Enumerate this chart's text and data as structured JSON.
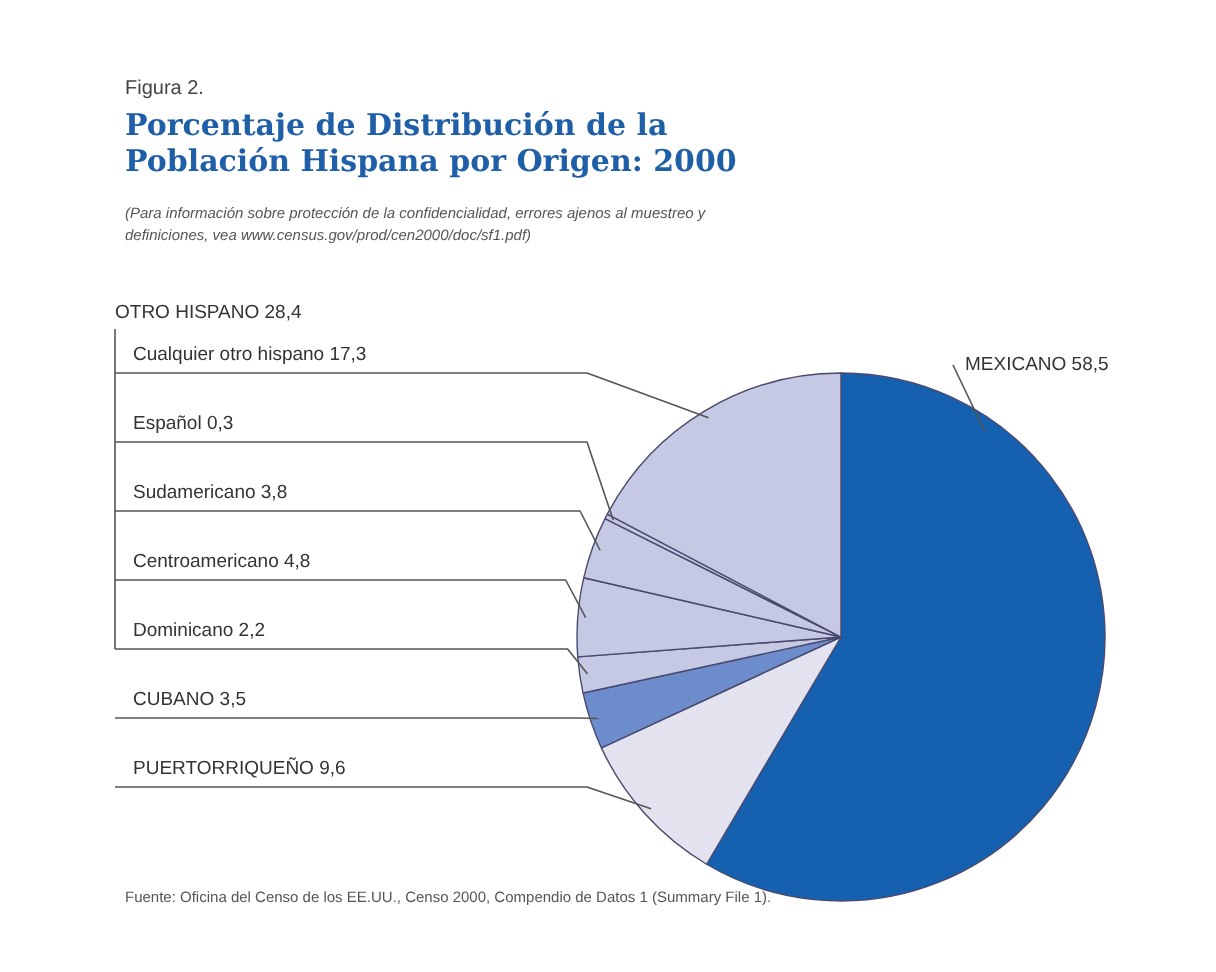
{
  "chart_data": {
    "type": "pie",
    "title": "Porcentaje de Distribución de la Población Hispana por Origen: 2000",
    "subtitle": "(Para información sobre protección de la confidencialidad, errores ajenos al muestreo y definiciones, vea www.census.gov/prod/cen2000/doc/sf1.pdf)",
    "categories": [
      "MEXICANO",
      "PUERTORRIQUEÑO",
      "CUBANO",
      "Dominicano",
      "Centroamericano",
      "Sudamericano",
      "Español",
      "Cualquier otro hispano"
    ],
    "values": [
      58.5,
      9.6,
      3.5,
      2.2,
      4.8,
      3.8,
      0.3,
      17.3
    ],
    "value_labels": [
      "58,5",
      "9,6",
      "3,5",
      "2,2",
      "4,8",
      "3,8",
      "0,3",
      "17,3"
    ],
    "colors": [
      "#1660b0",
      "#e2e3ef",
      "#6d8ccb",
      "#c5c9e4",
      "#c5c9e4",
      "#c5c9e4",
      "#c5c9e4",
      "#c5c9e4"
    ],
    "annotations": [
      "Figura 2.",
      "OTRO HISPANO 28,4",
      "Fuente: Oficina del Censo de los EE.UU., Censo 2000, Compendio de Datos 1 (Summary File 1)."
    ]
  }
}
